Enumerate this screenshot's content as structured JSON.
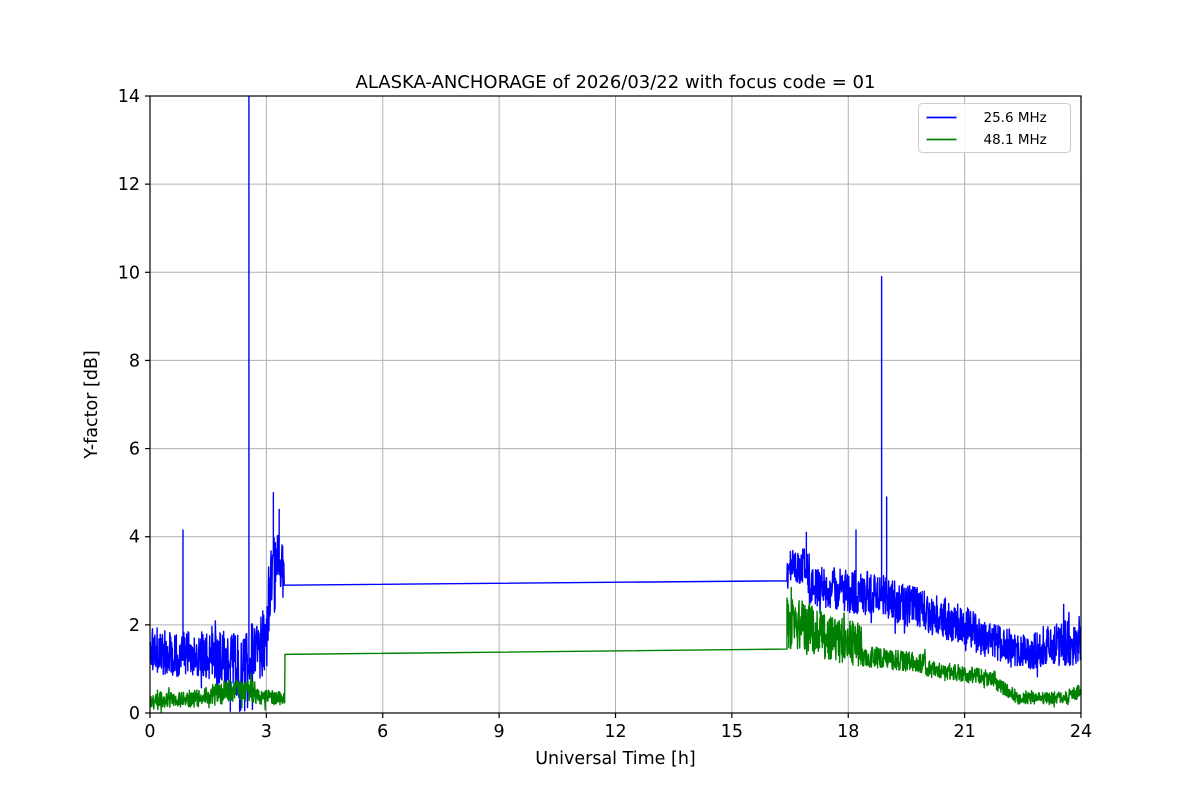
{
  "figure": {
    "background": "#ffffff"
  },
  "chart_data": {
    "type": "line",
    "title": "ALASKA-ANCHORAGE of 2026/03/22 with focus code = 01",
    "xlabel": "Universal Time [h]",
    "ylabel": "Y-factor [dB]",
    "xlim": [
      0,
      24
    ],
    "ylim": [
      0,
      14
    ],
    "xticks": [
      0,
      3,
      6,
      9,
      12,
      15,
      18,
      21,
      24
    ],
    "yticks": [
      0,
      2,
      4,
      6,
      8,
      10,
      12,
      14
    ],
    "grid": true,
    "grid_color": "#b0b0b0",
    "axis_color": "#000000",
    "noise_seed": 1337,
    "noise_step_hours": 0.008,
    "legend": {
      "position": "upper right",
      "border_color": "#cccccc",
      "entries": [
        {
          "label": "25.6 MHz",
          "color": "#0000ff"
        },
        {
          "label": "48.1 MHz",
          "color": "#008000"
        }
      ]
    },
    "series": [
      {
        "name": "25.6 MHz",
        "color": "#0000ff",
        "segments": [
          {
            "type": "noisy",
            "x0": 0.0,
            "x1": 0.83,
            "mean0": 1.45,
            "mean1": 1.35,
            "amp0": 0.55,
            "amp1": 0.55
          },
          {
            "type": "spike",
            "x": 0.85,
            "peak": 4.15
          },
          {
            "type": "noisy",
            "x0": 0.87,
            "x1": 1.7,
            "mean0": 1.35,
            "mean1": 1.3,
            "amp0": 0.5,
            "amp1": 0.55
          },
          {
            "type": "noisy",
            "x0": 1.7,
            "x1": 2.05,
            "mean0": 1.25,
            "mean1": 1.2,
            "amp0": 0.6,
            "amp1": 0.65
          },
          {
            "type": "spike",
            "x": 2.07,
            "peak": 0.04
          },
          {
            "type": "noisy",
            "x0": 2.09,
            "x1": 2.29,
            "mean0": 1.15,
            "mean1": 1.1,
            "amp0": 0.7,
            "amp1": 0.75
          },
          {
            "type": "spike",
            "x": 2.31,
            "peak": 0.04
          },
          {
            "type": "noisy",
            "x0": 2.33,
            "x1": 2.42,
            "mean0": 1.0,
            "mean1": 0.95,
            "amp0": 0.8,
            "amp1": 0.85
          },
          {
            "type": "spike",
            "x": 2.44,
            "peak": 0.05
          },
          {
            "type": "noisy",
            "x0": 2.46,
            "x1": 2.53,
            "mean0": 1.0,
            "mean1": 1.1,
            "amp0": 0.8,
            "amp1": 0.8
          },
          {
            "type": "spike",
            "x": 2.55,
            "peak": 14.6
          },
          {
            "type": "noisy",
            "x0": 2.57,
            "x1": 2.62,
            "mean0": 1.2,
            "mean1": 1.2,
            "amp0": 0.7,
            "amp1": 0.7
          },
          {
            "type": "spike",
            "x": 2.64,
            "peak": 0.08
          },
          {
            "type": "noisy",
            "x0": 2.66,
            "x1": 3.02,
            "mean0": 1.35,
            "mean1": 1.6,
            "amp0": 0.6,
            "amp1": 0.8
          },
          {
            "type": "noisy",
            "x0": 3.02,
            "x1": 3.16,
            "mean0": 2.2,
            "mean1": 3.0,
            "amp0": 0.9,
            "amp1": 0.9
          },
          {
            "type": "spike",
            "x": 3.18,
            "peak": 5.0
          },
          {
            "type": "noisy",
            "x0": 3.2,
            "x1": 3.31,
            "mean0": 3.1,
            "mean1": 3.3,
            "amp0": 0.9,
            "amp1": 0.9
          },
          {
            "type": "spike",
            "x": 3.33,
            "peak": 4.62
          },
          {
            "type": "noisy",
            "x0": 3.35,
            "x1": 3.45,
            "mean0": 3.2,
            "mean1": 3.1,
            "amp0": 0.8,
            "amp1": 0.7
          },
          {
            "type": "flat",
            "x0": 3.46,
            "x1": 16.42,
            "y0": 2.9,
            "y1": 3.0
          },
          {
            "type": "noisy",
            "x0": 16.42,
            "x1": 16.9,
            "mean0": 3.3,
            "mean1": 3.35,
            "amp0": 0.4,
            "amp1": 0.42
          },
          {
            "type": "spike",
            "x": 16.92,
            "peak": 4.1
          },
          {
            "type": "noisy",
            "x0": 16.94,
            "x1": 17.0,
            "mean0": 3.3,
            "mean1": 3.2,
            "amp0": 0.4,
            "amp1": 0.4
          },
          {
            "type": "noisy",
            "x0": 17.0,
            "x1": 18.18,
            "mean0": 2.9,
            "mean1": 2.75,
            "amp0": 0.45,
            "amp1": 0.5
          },
          {
            "type": "spike",
            "x": 18.2,
            "peak": 4.15
          },
          {
            "type": "noisy",
            "x0": 18.22,
            "x1": 18.83,
            "mean0": 2.75,
            "mean1": 2.7,
            "amp0": 0.5,
            "amp1": 0.5
          },
          {
            "type": "spike",
            "x": 18.86,
            "peak": 9.9
          },
          {
            "type": "noisy",
            "x0": 18.88,
            "x1": 18.97,
            "mean0": 2.7,
            "mean1": 2.7,
            "amp0": 0.45,
            "amp1": 0.45
          },
          {
            "type": "spike",
            "x": 18.99,
            "peak": 4.9
          },
          {
            "type": "noisy",
            "x0": 19.01,
            "x1": 21.3,
            "mean0": 2.6,
            "mean1": 1.9,
            "amp0": 0.5,
            "amp1": 0.45
          },
          {
            "type": "noisy",
            "x0": 21.3,
            "x1": 22.7,
            "mean0": 1.75,
            "mean1": 1.35,
            "amp0": 0.42,
            "amp1": 0.38
          },
          {
            "type": "noisy",
            "x0": 22.7,
            "x1": 24.0,
            "mean0": 1.45,
            "mean1": 1.65,
            "amp0": 0.45,
            "amp1": 0.55
          }
        ]
      },
      {
        "name": "48.1 MHz",
        "color": "#008000",
        "segments": [
          {
            "type": "noisy",
            "x0": 0.0,
            "x1": 1.4,
            "mean0": 0.3,
            "mean1": 0.33,
            "amp0": 0.18,
            "amp1": 0.2
          },
          {
            "type": "noisy",
            "x0": 1.4,
            "x1": 2.1,
            "mean0": 0.4,
            "mean1": 0.45,
            "amp0": 0.24,
            "amp1": 0.26
          },
          {
            "type": "noisy",
            "x0": 2.1,
            "x1": 2.7,
            "mean0": 0.5,
            "mean1": 0.52,
            "amp0": 0.3,
            "amp1": 0.28
          },
          {
            "type": "noisy",
            "x0": 2.7,
            "x1": 3.47,
            "mean0": 0.38,
            "mean1": 0.33,
            "amp0": 0.18,
            "amp1": 0.15
          },
          {
            "type": "flat",
            "x0": 3.48,
            "x1": 16.42,
            "y0": 1.33,
            "y1": 1.45
          },
          {
            "type": "noisy",
            "x0": 16.42,
            "x1": 17.1,
            "mean0": 2.05,
            "mean1": 1.95,
            "amp0": 0.58,
            "amp1": 0.55
          },
          {
            "type": "noisy",
            "x0": 17.1,
            "x1": 18.35,
            "mean0": 1.8,
            "mean1": 1.55,
            "amp0": 0.55,
            "amp1": 0.5
          },
          {
            "type": "noisy",
            "x0": 18.35,
            "x1": 20.0,
            "mean0": 1.3,
            "mean1": 1.12,
            "amp0": 0.25,
            "amp1": 0.22
          },
          {
            "type": "noisy",
            "x0": 20.0,
            "x1": 21.8,
            "mean0": 1.02,
            "mean1": 0.78,
            "amp0": 0.2,
            "amp1": 0.18
          },
          {
            "type": "noisy",
            "x0": 21.8,
            "x1": 22.3,
            "mean0": 0.68,
            "mean1": 0.4,
            "amp0": 0.17,
            "amp1": 0.14
          },
          {
            "type": "noisy",
            "x0": 22.3,
            "x1": 23.7,
            "mean0": 0.33,
            "mean1": 0.35,
            "amp0": 0.13,
            "amp1": 0.14
          },
          {
            "type": "noisy",
            "x0": 23.7,
            "x1": 24.0,
            "mean0": 0.4,
            "mean1": 0.5,
            "amp0": 0.15,
            "amp1": 0.16
          }
        ]
      }
    ]
  }
}
